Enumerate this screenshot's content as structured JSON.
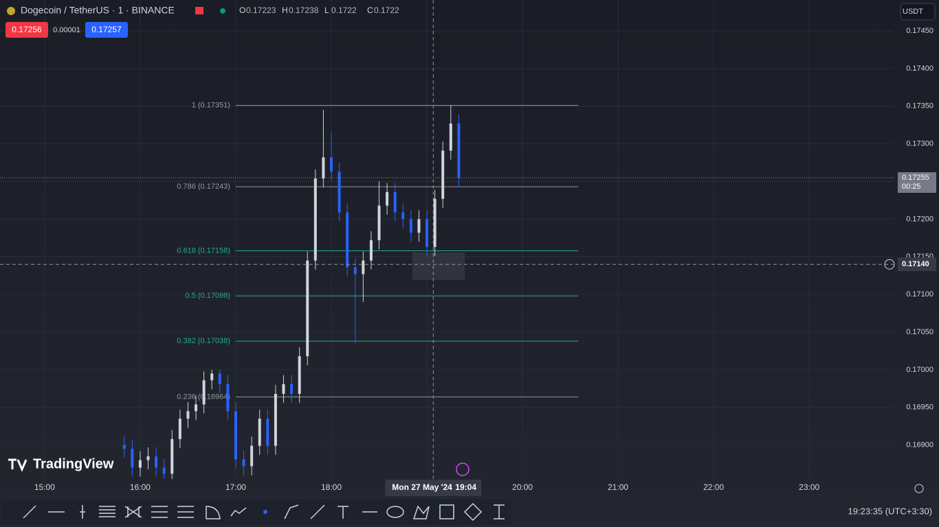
{
  "header": {
    "symbol": "Dogecoin / TetherUS · 1 · BINANCE",
    "ohlc": [
      {
        "label": "O",
        "value": 0.17223
      },
      {
        "label": "H",
        "value": 0.17238
      },
      {
        "label": "L",
        "value": 0.1722
      },
      {
        "label": "C",
        "value": 0.1722
      }
    ],
    "bid": 0.17256,
    "spread": 1e-05,
    "ask": 0.17257,
    "currency": "USDT",
    "logo": "TradingView"
  },
  "chart_data": {
    "type": "candlestick",
    "x": [
      "15:50",
      "15:55",
      "16:00",
      "16:05",
      "16:10",
      "16:15",
      "16:20",
      "16:25",
      "16:30",
      "16:35",
      "16:40",
      "16:45",
      "16:50",
      "16:55",
      "17:00",
      "17:05",
      "17:10",
      "17:15",
      "17:20",
      "17:25",
      "17:30",
      "17:35",
      "17:40",
      "17:45",
      "17:50",
      "17:55",
      "18:00",
      "18:05",
      "18:10",
      "18:15",
      "18:20",
      "18:25",
      "18:30",
      "18:35",
      "18:40",
      "18:45",
      "18:50",
      "18:55",
      "19:00",
      "19:05",
      "19:10",
      "19:15",
      "19:20"
    ],
    "open": [
      0.169,
      0.16895,
      0.1687,
      0.1688,
      0.16885,
      0.1687,
      0.16862,
      0.16908,
      0.16935,
      0.16945,
      0.16954,
      0.16986,
      0.16995,
      0.16981,
      0.16945,
      0.16881,
      0.16872,
      0.16899,
      0.16935,
      0.16899,
      0.16968,
      0.16981,
      0.16968,
      0.17018,
      0.17145,
      0.17254,
      0.17282,
      0.17263,
      0.17209,
      0.17136,
      0.17127,
      0.17145,
      0.17172,
      0.17218,
      0.17236,
      0.17209,
      0.172,
      0.17182,
      0.172,
      0.17163,
      0.17227,
      0.17291,
      0.17327
    ],
    "high": [
      0.16912,
      0.16907,
      0.16892,
      0.16897,
      0.16897,
      0.16882,
      0.1692,
      0.16947,
      0.16957,
      0.16966,
      0.16998,
      0.17,
      0.17,
      0.16993,
      0.16957,
      0.16893,
      0.16911,
      0.16947,
      0.16947,
      0.1698,
      0.16993,
      0.16993,
      0.1703,
      0.17157,
      0.17266,
      0.17345,
      0.17315,
      0.17275,
      0.17221,
      0.17148,
      0.17157,
      0.17184,
      0.1725,
      0.17248,
      0.17248,
      0.17221,
      0.17212,
      0.17212,
      0.17212,
      0.17239,
      0.17303,
      0.17351,
      0.17339
    ],
    "low": [
      0.16883,
      0.16858,
      0.16858,
      0.16868,
      0.16858,
      0.16855,
      0.16855,
      0.16896,
      0.16923,
      0.16933,
      0.16942,
      0.16974,
      0.16969,
      0.16933,
      0.16869,
      0.1686,
      0.1686,
      0.16887,
      0.16887,
      0.16887,
      0.16956,
      0.16956,
      0.16956,
      0.17006,
      0.17133,
      0.17242,
      0.17251,
      0.17197,
      0.17124,
      0.17035,
      0.1709,
      0.17133,
      0.1716,
      0.17206,
      0.17197,
      0.17188,
      0.1717,
      0.1717,
      0.17151,
      0.17151,
      0.17215,
      0.17279,
      0.17243
    ],
    "close": [
      0.16895,
      0.1687,
      0.1688,
      0.16885,
      0.1687,
      0.16862,
      0.16908,
      0.16935,
      0.16945,
      0.16954,
      0.16986,
      0.16995,
      0.16981,
      0.16945,
      0.16881,
      0.16872,
      0.16899,
      0.16935,
      0.16899,
      0.16968,
      0.16981,
      0.16968,
      0.17018,
      0.17145,
      0.17254,
      0.17282,
      0.17263,
      0.17209,
      0.17136,
      0.17127,
      0.17145,
      0.17172,
      0.17218,
      0.17236,
      0.17209,
      0.172,
      0.17182,
      0.172,
      0.17163,
      0.17227,
      0.17291,
      0.17327,
      0.17255
    ],
    "up_color": "#d1d4dc",
    "down_color": "#2962ff",
    "xlim": [
      "14:32",
      "23:53"
    ],
    "xticks": [
      "15:00",
      "16:00",
      "17:00",
      "18:00",
      "19:00",
      "20:00",
      "21:00",
      "22:00",
      "23:00"
    ],
    "ylim": [
      0.16855,
      0.17491
    ],
    "yticks": [
      {
        "value": 0.169,
        "label": "0.16900"
      },
      {
        "value": 0.1695,
        "label": "0.16950"
      },
      {
        "value": 0.17,
        "label": "0.17000"
      },
      {
        "value": 0.1705,
        "label": "0.17050"
      },
      {
        "value": 0.171,
        "label": "0.17100"
      },
      {
        "value": 0.1715,
        "label": "0.17150"
      },
      {
        "value": 0.172,
        "label": "0.17200"
      },
      {
        "value": 0.1725,
        "label": "0.17250"
      },
      {
        "value": 0.173,
        "label": "0.17300"
      },
      {
        "value": 0.1735,
        "label": "0.17350"
      },
      {
        "value": 0.174,
        "label": "0.17400"
      },
      {
        "value": 0.1745,
        "label": "0.17450"
      }
    ],
    "grid": true,
    "fib_levels": [
      {
        "label": "1 (0.17351)",
        "value": 0.17351,
        "color": "#9598a1"
      },
      {
        "label": "0.786 (0.17243)",
        "value": 0.17243,
        "color": "#9598a1"
      },
      {
        "label": "0.618 (0.17158)",
        "value": 0.17158,
        "color": "#22ab94"
      },
      {
        "label": "0.5 (0.17098)",
        "value": 0.17098,
        "color": "#22ab94"
      },
      {
        "label": "0.382 (0.17038)",
        "value": 0.17038,
        "color": "#22ab94"
      },
      {
        "label": "0.236 (0.16964)",
        "value": 0.16964,
        "color": "#9598a1"
      }
    ],
    "fib_start": "17:00",
    "fib_end": "20:35",
    "last_price": {
      "value": 0.17255,
      "countdown": "00:25"
    },
    "crosshair": {
      "price": {
        "value": 0.1714,
        "label": "0.17140"
      },
      "date": "Mon 27 May '24",
      "time": "19:04"
    }
  },
  "status": {
    "clock": "19:23:35 (UTC+3:30)"
  }
}
